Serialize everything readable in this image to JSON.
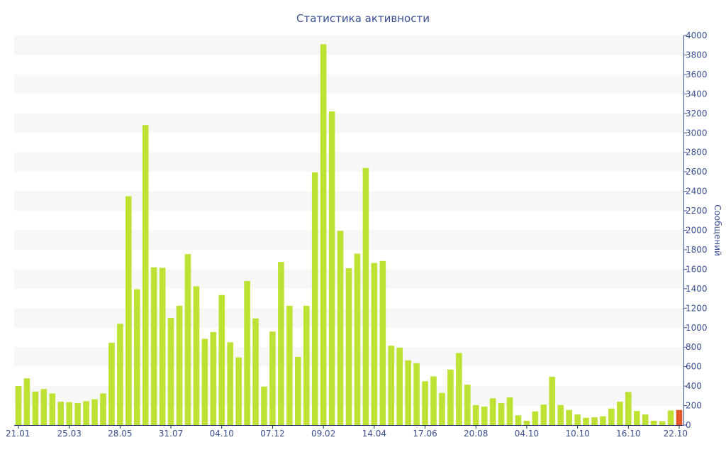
{
  "chart_data": {
    "type": "bar",
    "title": "Статистика активности",
    "xlabel": "",
    "ylabel": "Сообщений",
    "ylim": [
      0,
      4000
    ],
    "yticks": [
      0,
      200,
      400,
      600,
      800,
      1000,
      1200,
      1400,
      1600,
      1800,
      2000,
      2200,
      2400,
      2600,
      2800,
      3000,
      3200,
      3400,
      3600,
      3800,
      4000
    ],
    "x_tick_labels": [
      {
        "label": "21.01",
        "index": 0
      },
      {
        "label": "25.03",
        "index": 6
      },
      {
        "label": "28.05",
        "index": 12
      },
      {
        "label": "31.07",
        "index": 18
      },
      {
        "label": "04.10",
        "index": 24
      },
      {
        "label": "07.12",
        "index": 30
      },
      {
        "label": "09.02",
        "index": 36
      },
      {
        "label": "14.04",
        "index": 42
      },
      {
        "label": "17.06",
        "index": 48
      },
      {
        "label": "20.08",
        "index": 54
      },
      {
        "label": "04.10",
        "index": 60
      },
      {
        "label": "10.10",
        "index": 66
      },
      {
        "label": "16.10",
        "index": 72
      },
      {
        "label": "22.10",
        "index": 78
      }
    ],
    "grid": "horizontal bands",
    "colors": {
      "bar": "#bde234",
      "highlight": "#e2582b",
      "text": "#3a4f8f",
      "band": "#f7f7f7"
    },
    "highlight_index": 78,
    "values": [
      400,
      480,
      345,
      370,
      325,
      240,
      235,
      225,
      245,
      265,
      325,
      845,
      1040,
      2350,
      1395,
      3080,
      1620,
      1615,
      1100,
      1225,
      1755,
      1425,
      885,
      955,
      1335,
      850,
      695,
      1480,
      1095,
      395,
      960,
      1675,
      1225,
      700,
      1225,
      2595,
      3910,
      3220,
      1995,
      1610,
      1760,
      2640,
      1665,
      1685,
      815,
      795,
      665,
      635,
      450,
      500,
      330,
      570,
      740,
      415,
      205,
      190,
      275,
      225,
      285,
      100,
      45,
      140,
      210,
      495,
      205,
      155,
      110,
      75,
      80,
      90,
      170,
      240,
      340,
      145,
      110,
      45,
      40,
      150,
      155
    ]
  }
}
